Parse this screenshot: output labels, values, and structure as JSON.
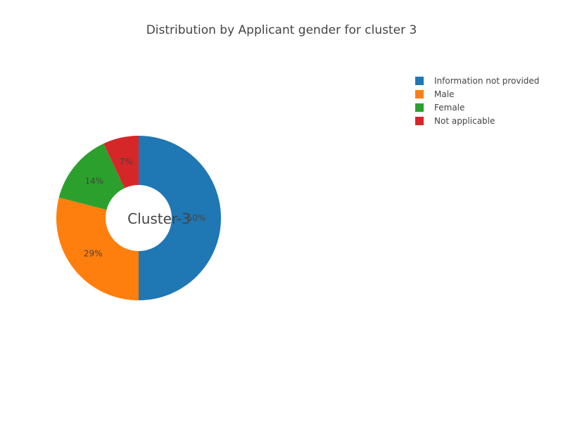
{
  "chart_data": {
    "type": "pie",
    "title": "Distribution by Applicant gender for cluster 3",
    "center_label": "Cluster-3",
    "hole": true,
    "legend_position": "top-right",
    "slices": [
      {
        "label": "Information not provided",
        "value": 50,
        "text": "50%",
        "color": "#1f77b4"
      },
      {
        "label": "Male",
        "value": 29,
        "text": "29%",
        "color": "#ff7f0e"
      },
      {
        "label": "Female",
        "value": 14,
        "text": "14%",
        "color": "#2ca02c"
      },
      {
        "label": "Not applicable",
        "value": 7,
        "text": "7%",
        "color": "#d62728"
      }
    ]
  }
}
